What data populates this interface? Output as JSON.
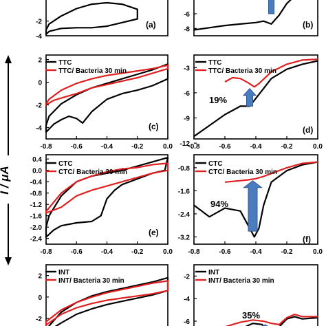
{
  "colors": {
    "black": "#000000",
    "red": "#e02020",
    "arrow": "#4a7cc0",
    "arrow_border": "#2d5a96"
  },
  "figure": {
    "ylabel": "I / μA"
  },
  "chart_data": [
    {
      "id": "a",
      "type": "line",
      "panel_label": "(a)",
      "xlim": [
        -0.8,
        0.0
      ],
      "ylim": [
        -4,
        2
      ],
      "xticks": [],
      "xtick_labels": [],
      "yticks": [
        -4,
        -2
      ],
      "ytick_labels": [
        "-4",
        "-2"
      ],
      "legend": [],
      "arrow": null,
      "series": [
        {
          "color": "black",
          "closed": true,
          "x": [
            -0.8,
            -0.78,
            -0.7,
            -0.6,
            -0.5,
            -0.4,
            -0.3,
            -0.2,
            -0.2,
            -0.3,
            -0.4,
            -0.5,
            -0.6,
            -0.7,
            -0.78,
            -0.8
          ],
          "y": [
            -3.8,
            -3.4,
            -3.0,
            -2.9,
            -2.9,
            -2.7,
            -2.2,
            -1.7,
            -0.4,
            0.3,
            0.5,
            0.3,
            -0.3,
            -1.3,
            -2.4,
            -3.2
          ]
        }
      ]
    },
    {
      "id": "b",
      "type": "line",
      "panel_label": "(b)",
      "xlim": [
        -0.8,
        0.0
      ],
      "ylim": [
        -9,
        -3
      ],
      "xticks": [],
      "xtick_labels": [],
      "yticks": [
        -8,
        -6
      ],
      "ytick_labels": [
        "-8",
        "-6"
      ],
      "legend": [],
      "arrow": {
        "x": -0.3,
        "y_tail": -6.0,
        "y_head": -3.0
      },
      "series": [
        {
          "color": "black",
          "closed": false,
          "x": [
            -0.8,
            -0.7,
            -0.6,
            -0.5,
            -0.4,
            -0.35,
            -0.3,
            -0.25,
            -0.2,
            -0.15,
            -0.1,
            -0.05,
            0.0
          ],
          "y": [
            -8.2,
            -7.9,
            -7.6,
            -7.4,
            -7.2,
            -7.0,
            -7.4,
            -6.2,
            -4.6,
            -3.6,
            -3.1,
            -3.0,
            -2.9
          ]
        }
      ]
    },
    {
      "id": "c",
      "type": "line",
      "panel_label": "(c)",
      "xlim": [
        -0.8,
        0.0
      ],
      "ylim": [
        -5,
        2.4
      ],
      "xticks": [
        -0.8,
        -0.6,
        -0.4,
        -0.2,
        0.0
      ],
      "xtick_labels": [
        "-0.8",
        "-0.6",
        "-0.4",
        "-0.2",
        "0.0"
      ],
      "yticks": [
        2,
        0,
        -2,
        -4
      ],
      "ytick_labels": [
        "2",
        "0",
        "-2",
        "-4"
      ],
      "legend": [
        "TTC",
        "TTC/ Bacteria 30 min"
      ],
      "arrow": null,
      "series": [
        {
          "name": "TTC",
          "color": "black",
          "closed": true,
          "x": [
            -0.8,
            -0.75,
            -0.7,
            -0.65,
            -0.6,
            -0.56,
            -0.5,
            -0.4,
            -0.3,
            -0.2,
            -0.1,
            0.0,
            0.0,
            -0.1,
            -0.2,
            -0.3,
            -0.4,
            -0.5,
            -0.6,
            -0.7,
            -0.78,
            -0.8
          ],
          "y": [
            -4.4,
            -3.7,
            -3.3,
            -3.0,
            -3.2,
            -3.6,
            -2.6,
            -1.5,
            -1.0,
            -0.7,
            -0.3,
            0.3,
            1.6,
            1.1,
            0.7,
            0.3,
            -0.1,
            -0.5,
            -1.1,
            -1.9,
            -3.0,
            -3.8
          ]
        },
        {
          "name": "TTC/ Bacteria 30 min",
          "color": "red",
          "closed": true,
          "x": [
            -0.8,
            -0.75,
            -0.7,
            -0.6,
            -0.5,
            -0.4,
            -0.3,
            -0.2,
            -0.1,
            0.0,
            0.0,
            -0.1,
            -0.2,
            -0.3,
            -0.4,
            -0.5,
            -0.6,
            -0.7,
            -0.78,
            -0.8
          ],
          "y": [
            -2.0,
            -1.6,
            -1.4,
            -1.0,
            -0.5,
            -0.2,
            0.1,
            0.4,
            0.8,
            1.2,
            1.5,
            1.2,
            1.0,
            0.8,
            0.6,
            0.3,
            -0.1,
            -0.7,
            -1.5,
            -1.9
          ]
        }
      ]
    },
    {
      "id": "d",
      "type": "line",
      "panel_label": "(d)",
      "xlim": [
        -0.8,
        0.0
      ],
      "ylim": [
        -11.5,
        -1.5
      ],
      "xticks": [
        -0.8,
        -0.6,
        -0.4,
        -0.2,
        0.0
      ],
      "xtick_labels": [
        "-0.8",
        "-0.6",
        "-0.4",
        "-0.2",
        "0.0"
      ],
      "yticks": [
        -3,
        -6,
        -9,
        -12
      ],
      "ytick_labels": [
        "-3",
        "-6",
        "-9",
        "-12"
      ],
      "legend": [
        "TTC",
        "TTC/ Bacteria 30 min"
      ],
      "arrow": {
        "x": -0.44,
        "y_tail": -7.6,
        "y_head": -5.5,
        "label": "19%"
      },
      "series": [
        {
          "name": "TTC",
          "color": "black",
          "closed": false,
          "x": [
            -0.8,
            -0.7,
            -0.6,
            -0.5,
            -0.44,
            -0.38,
            -0.3,
            -0.2,
            -0.1,
            0.0
          ],
          "y": [
            -11.2,
            -9.9,
            -8.6,
            -7.6,
            -7.6,
            -6.2,
            -4.3,
            -3.2,
            -2.6,
            -2.2
          ]
        },
        {
          "name": "TTC/ Bacteria 30 min",
          "color": "red",
          "closed": false,
          "x": [
            -0.6,
            -0.55,
            -0.5,
            -0.45,
            -0.41,
            -0.38,
            -0.3,
            -0.2,
            -0.1,
            0.0
          ],
          "y": [
            -4.7,
            -4.2,
            -4.3,
            -4.8,
            -5.3,
            -4.9,
            -3.5,
            -2.6,
            -2.1,
            -2.0
          ]
        }
      ]
    },
    {
      "id": "e",
      "type": "line",
      "panel_label": "(e)",
      "xlim": [
        -0.8,
        0.0
      ],
      "ylim": [
        -2.6,
        0.55
      ],
      "xticks": [
        -0.8,
        -0.6,
        -0.4,
        -0.2,
        0.0
      ],
      "xtick_labels": [
        "-0.8",
        "-0.6",
        "-0.4",
        "-0.2",
        "0.0"
      ],
      "yticks": [
        0.4,
        0.0,
        -0.4,
        -0.8,
        -1.2,
        -1.6,
        -2.0,
        -2.4
      ],
      "ytick_labels": [
        "0.4",
        "0.0",
        "-0.4",
        "-0.8",
        "-1.2",
        "-1.6",
        "-2.0",
        "-2.4"
      ],
      "legend": [
        "CTC",
        "CTC/ Bacteria 30 min"
      ],
      "arrow": null,
      "series": [
        {
          "name": "CTC",
          "color": "black",
          "closed": true,
          "x": [
            -0.8,
            -0.75,
            -0.7,
            -0.6,
            -0.5,
            -0.44,
            -0.4,
            -0.35,
            -0.3,
            -0.2,
            -0.1,
            -0.02,
            0.0,
            -0.1,
            -0.2,
            -0.3,
            -0.4,
            -0.5,
            -0.6,
            -0.7,
            -0.78,
            -0.8
          ],
          "y": [
            -2.35,
            -2.1,
            -1.95,
            -1.85,
            -1.8,
            -1.6,
            -1.0,
            -0.7,
            -0.5,
            -0.3,
            -0.1,
            0.0,
            0.45,
            0.3,
            0.15,
            0.0,
            -0.1,
            -0.2,
            -0.4,
            -0.9,
            -1.6,
            -2.0
          ]
        },
        {
          "name": "CTC/ Bacteria 30 min",
          "color": "red",
          "closed": true,
          "x": [
            -0.8,
            -0.7,
            -0.6,
            -0.5,
            -0.4,
            -0.3,
            -0.2,
            -0.1,
            0.0,
            0.0,
            -0.1,
            -0.2,
            -0.3,
            -0.4,
            -0.5,
            -0.6,
            -0.7,
            -0.8
          ],
          "y": [
            -1.5,
            -1.3,
            -0.9,
            -0.7,
            -0.55,
            -0.4,
            -0.25,
            -0.1,
            0.0,
            0.25,
            0.2,
            0.1,
            0.05,
            -0.05,
            -0.2,
            -0.4,
            -0.8,
            -1.45
          ]
        }
      ]
    },
    {
      "id": "f",
      "type": "line",
      "panel_label": "(f)",
      "xlim": [
        -0.8,
        0.0
      ],
      "ylim": [
        -3.45,
        -0.35
      ],
      "xticks": [
        -0.8,
        -0.6,
        -0.4,
        -0.2,
        0.0
      ],
      "xtick_labels": [
        "-0.8",
        "-0.6",
        "-0.4",
        "-0.2",
        "0.0"
      ],
      "yticks": [
        -0.8,
        -1.6,
        -2.4,
        -3.2
      ],
      "ytick_labels": [
        "-0.8",
        "-1.6",
        "-2.4",
        "-3.2"
      ],
      "legend": [
        "CTC",
        "CTC/ Bacteria 30 min"
      ],
      "arrow": {
        "x": -0.42,
        "y_tail": -3.0,
        "y_head": -1.25,
        "label": "94%"
      },
      "series": [
        {
          "name": "CTC",
          "color": "black",
          "closed": false,
          "x": [
            -0.8,
            -0.7,
            -0.6,
            -0.5,
            -0.45,
            -0.41,
            -0.38,
            -0.35,
            -0.3,
            -0.2,
            -0.1,
            0.0
          ],
          "y": [
            -2.1,
            -2.5,
            -2.2,
            -2.3,
            -2.8,
            -3.2,
            -2.9,
            -2.1,
            -1.3,
            -0.9,
            -0.7,
            -0.6
          ]
        },
        {
          "name": "CTC/ Bacteria 30 min",
          "color": "red",
          "closed": false,
          "x": [
            -0.6,
            -0.5,
            -0.45,
            -0.4,
            -0.35,
            -0.3,
            -0.2,
            -0.1,
            0.0
          ],
          "y": [
            -1.3,
            -1.25,
            -1.22,
            -1.18,
            -1.1,
            -1.0,
            -0.8,
            -0.65,
            -0.6
          ]
        }
      ]
    },
    {
      "id": "g",
      "type": "line",
      "panel_label": "",
      "xlim": [
        -0.8,
        0.0
      ],
      "ylim": [
        -3.4,
        3.0
      ],
      "xticks": [],
      "xtick_labels": [],
      "yticks": [
        2,
        0,
        -2
      ],
      "ytick_labels": [
        "2",
        "0",
        "-2"
      ],
      "legend": [
        "INT",
        "INT/ Bacteria 30 min"
      ],
      "arrow": null,
      "series": [
        {
          "name": "INT",
          "color": "black",
          "closed": true,
          "x": [
            -0.8,
            -0.7,
            -0.6,
            -0.5,
            -0.4,
            -0.3,
            -0.2,
            -0.1,
            0.0,
            0.0,
            -0.1,
            -0.2,
            -0.3,
            -0.4,
            -0.5,
            -0.6,
            -0.7,
            -0.8
          ],
          "y": [
            -3.3,
            -2.4,
            -1.6,
            -1.1,
            -0.7,
            -0.4,
            -0.1,
            0.2,
            0.6,
            1.8,
            1.4,
            1.1,
            0.8,
            0.5,
            0.1,
            -0.5,
            -1.4,
            -3.0
          ]
        },
        {
          "name": "INT/ Bacteria 30 min",
          "color": "red",
          "closed": true,
          "x": [
            -0.8,
            -0.7,
            -0.6,
            -0.5,
            -0.4,
            -0.3,
            -0.2,
            -0.1,
            0.0,
            0.0,
            -0.1,
            -0.2,
            -0.3,
            -0.4,
            -0.5,
            -0.6,
            -0.7,
            -0.8
          ],
          "y": [
            -2.6,
            -1.6,
            -1.0,
            -0.6,
            -0.3,
            -0.1,
            0.1,
            0.3,
            0.6,
            1.5,
            1.3,
            1.0,
            0.7,
            0.4,
            0.0,
            -0.5,
            -1.2,
            -2.3
          ]
        }
      ]
    },
    {
      "id": "h",
      "type": "line",
      "panel_label": "",
      "xlim": [
        -0.8,
        0.0
      ],
      "ylim": [
        -7.1,
        -1.0
      ],
      "xticks": [],
      "xtick_labels": [],
      "yticks": [
        -2,
        -4,
        -6
      ],
      "ytick_labels": [
        "-2",
        "-4",
        "-6"
      ],
      "legend": [
        "INT",
        "INT/ Bacteria 30 min"
      ],
      "arrow": {
        "x": -0.34,
        "y_tail": -7.1,
        "y_head": -6.3,
        "label": "35%"
      },
      "series": [
        {
          "name": "INT",
          "color": "black",
          "closed": false,
          "x": [
            -0.7,
            -0.6,
            -0.5,
            -0.42,
            -0.36,
            -0.32,
            -0.27,
            -0.2,
            -0.15,
            -0.1,
            0.0
          ],
          "y": [
            -7.0,
            -6.9,
            -6.7,
            -6.2,
            -6.3,
            -6.9,
            -6.8,
            -5.8,
            -5.6,
            -5.8,
            -5.7
          ]
        },
        {
          "name": "INT/ Bacteria 30 min",
          "color": "red",
          "closed": false,
          "x": [
            -0.7,
            -0.6,
            -0.5,
            -0.42,
            -0.35,
            -0.3,
            -0.25,
            -0.2,
            -0.15,
            -0.1,
            0.0
          ],
          "y": [
            -6.9,
            -6.5,
            -6.1,
            -5.9,
            -6.0,
            -6.2,
            -6.3,
            -5.7,
            -5.4,
            -5.6,
            -5.6
          ]
        }
      ]
    }
  ]
}
